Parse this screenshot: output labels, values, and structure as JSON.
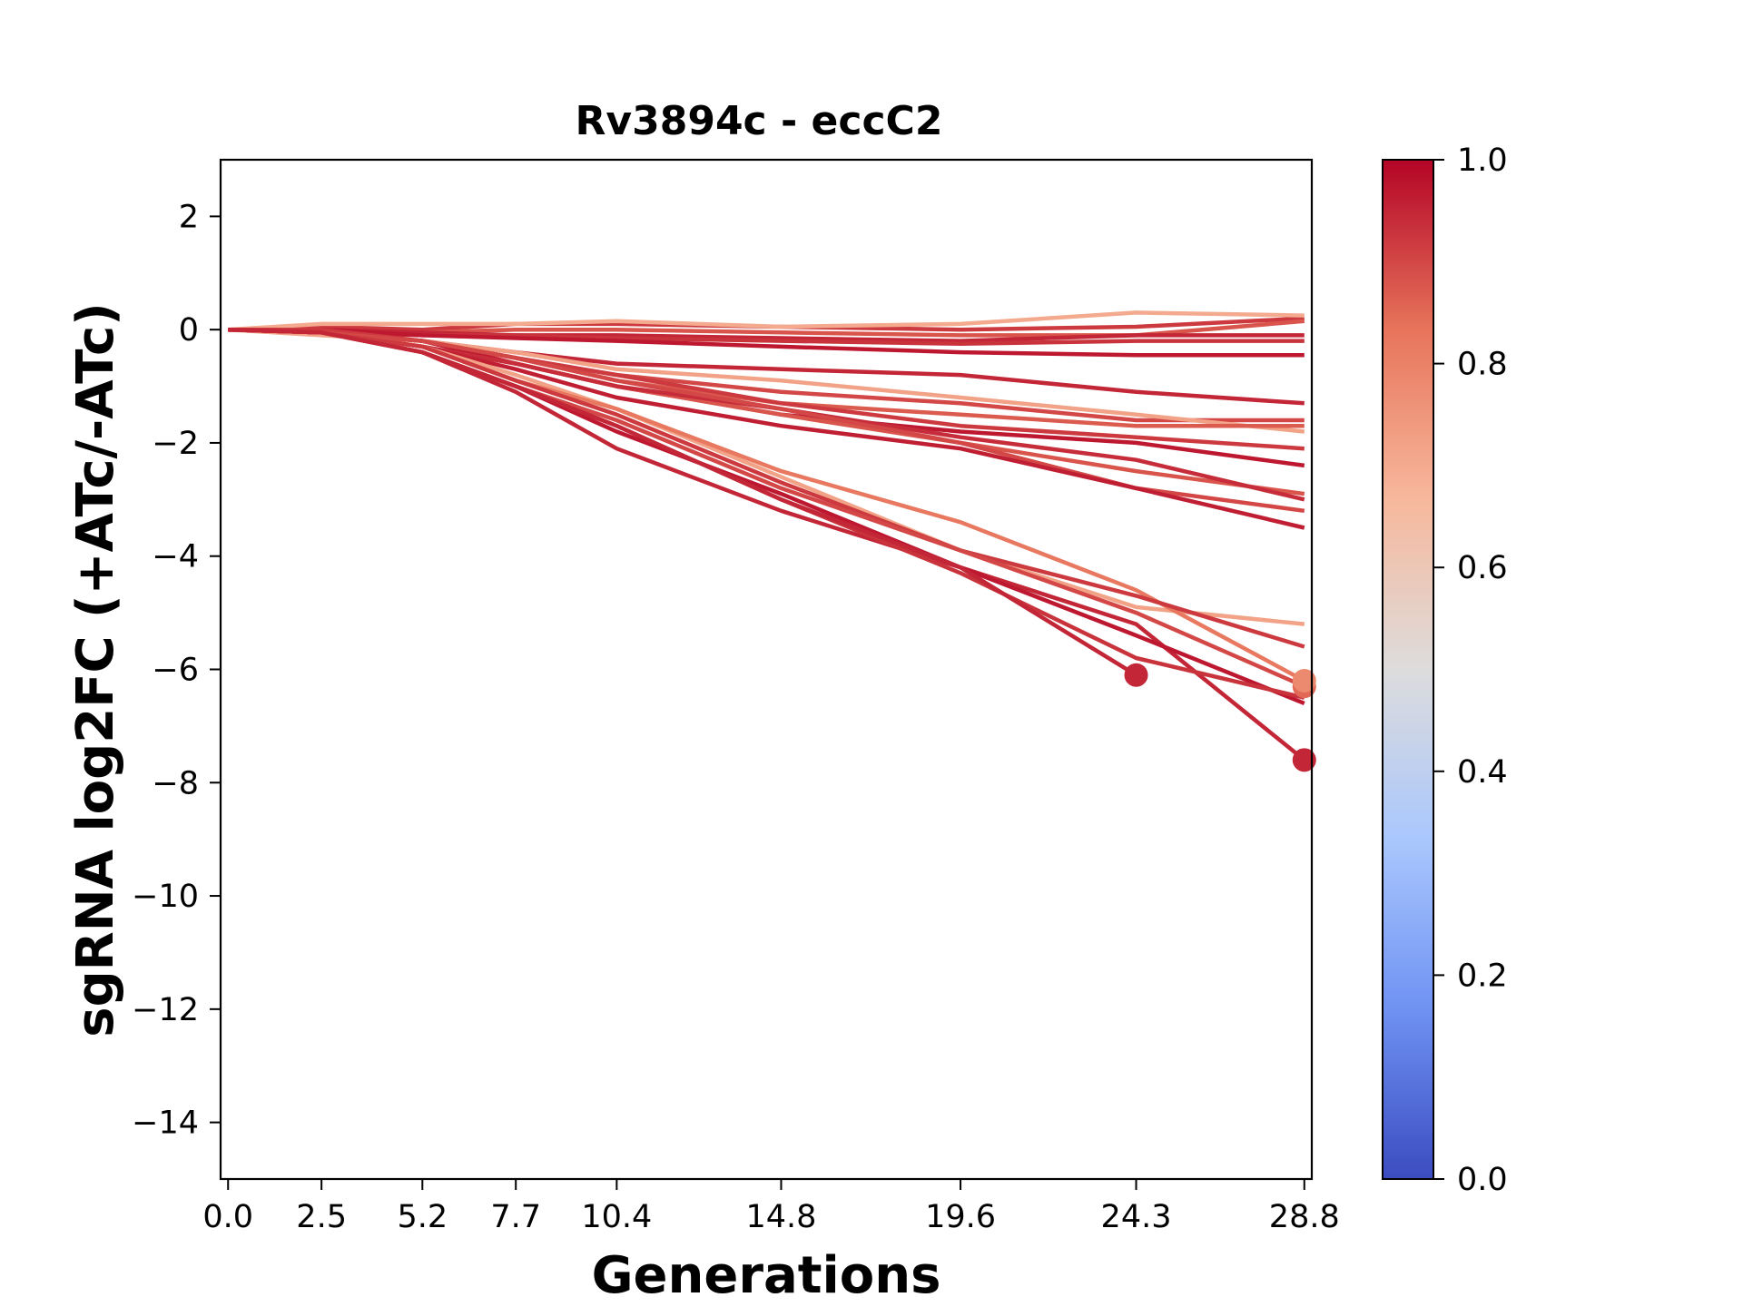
{
  "chart_data": {
    "type": "line",
    "title": "Rv3894c - eccC2",
    "xlabel": "Generations",
    "ylabel": "sgRNA log2FC (+ATc/-ATc)",
    "x_ticks": [
      "0.0",
      "2.5",
      "5.2",
      "7.7",
      "10.4",
      "14.8",
      "19.6",
      "24.3",
      "28.8"
    ],
    "y_ticks": [
      "2",
      "0",
      "−2",
      "−4",
      "−6",
      "−8",
      "−10",
      "−12",
      "−14"
    ],
    "xlim": [
      -0.2,
      29.0
    ],
    "ylim": [
      -15,
      3
    ],
    "colorbar": {
      "ticks": [
        "0.0",
        "0.2",
        "0.4",
        "0.6",
        "0.8",
        "1.0"
      ],
      "colormap": "coolwarm",
      "stops": [
        "#3b4cc0",
        "#6f92f3",
        "#aac7fd",
        "#dddcdc",
        "#f7b89c",
        "#e7745b",
        "#b40426"
      ]
    },
    "x": [
      0.0,
      2.5,
      5.2,
      7.7,
      10.4,
      14.8,
      19.6,
      24.3,
      28.8
    ],
    "series": [
      {
        "value": 0.92,
        "values": [
          0.0,
          0.05,
          0.0,
          0.1,
          0.1,
          0.05,
          0.0,
          0.05,
          0.2
        ]
      },
      {
        "value": 0.7,
        "values": [
          0.0,
          0.1,
          0.1,
          0.1,
          0.15,
          0.05,
          0.1,
          0.3,
          0.25
        ]
      },
      {
        "value": 0.88,
        "values": [
          0.0,
          0.0,
          -0.05,
          0.0,
          0.0,
          -0.05,
          -0.1,
          -0.1,
          0.15
        ]
      },
      {
        "value": 0.95,
        "values": [
          0.0,
          0.0,
          -0.05,
          -0.1,
          -0.1,
          -0.15,
          -0.2,
          -0.1,
          -0.1
        ]
      },
      {
        "value": 0.93,
        "values": [
          0.0,
          -0.05,
          -0.1,
          -0.1,
          -0.15,
          -0.2,
          -0.25,
          -0.2,
          -0.2
        ]
      },
      {
        "value": 0.97,
        "values": [
          0.0,
          0.0,
          -0.1,
          -0.15,
          -0.2,
          -0.3,
          -0.4,
          -0.45,
          -0.45
        ]
      },
      {
        "value": 0.95,
        "values": [
          0.0,
          -0.05,
          -0.2,
          -0.4,
          -0.6,
          -0.7,
          -0.8,
          -1.1,
          -1.3
        ]
      },
      {
        "value": 0.9,
        "values": [
          0.0,
          -0.05,
          -0.2,
          -0.5,
          -0.8,
          -1.1,
          -1.3,
          -1.6,
          -1.6
        ]
      },
      {
        "value": 0.72,
        "values": [
          0.0,
          -0.1,
          -0.2,
          -0.4,
          -0.7,
          -0.9,
          -1.2,
          -1.5,
          -1.8
        ]
      },
      {
        "value": 0.87,
        "values": [
          0.0,
          -0.05,
          -0.2,
          -0.5,
          -0.9,
          -1.3,
          -1.5,
          -1.7,
          -1.7
        ]
      },
      {
        "value": 0.92,
        "values": [
          0.0,
          0.0,
          -0.2,
          -0.5,
          -0.8,
          -1.3,
          -1.7,
          -1.9,
          -2.1
        ]
      },
      {
        "value": 0.97,
        "values": [
          0.0,
          -0.05,
          -0.2,
          -0.6,
          -1.0,
          -1.5,
          -1.8,
          -2.0,
          -2.4
        ]
      },
      {
        "value": 0.88,
        "values": [
          0.0,
          -0.05,
          -0.3,
          -0.6,
          -1.0,
          -1.5,
          -2.0,
          -2.5,
          -2.9
        ]
      },
      {
        "value": 0.94,
        "values": [
          0.0,
          -0.05,
          -0.3,
          -0.6,
          -1.0,
          -1.4,
          -1.9,
          -2.3,
          -3.0
        ]
      },
      {
        "value": 0.9,
        "values": [
          0.0,
          -0.05,
          -0.2,
          -0.5,
          -0.9,
          -1.4,
          -2.0,
          -2.8,
          -3.2
        ]
      },
      {
        "value": 0.96,
        "values": [
          0.0,
          -0.05,
          -0.3,
          -0.7,
          -1.2,
          -1.7,
          -2.1,
          -2.8,
          -3.5
        ]
      },
      {
        "value": 0.72,
        "values": [
          0.0,
          -0.05,
          -0.3,
          -0.8,
          -1.4,
          -2.6,
          -3.9,
          -4.9,
          -5.2
        ]
      },
      {
        "value": 0.82,
        "values": [
          0.0,
          -0.05,
          -0.3,
          -0.9,
          -1.4,
          -2.5,
          -3.4,
          -4.6,
          -6.2
        ]
      },
      {
        "value": 0.92,
        "values": [
          0.0,
          -0.05,
          -0.3,
          -0.9,
          -1.5,
          -2.7,
          -3.9,
          -4.7,
          -5.6
        ]
      },
      {
        "value": 0.95,
        "values": [
          0.0,
          -0.05,
          -0.4,
          -1.1,
          -2.1,
          -3.2,
          -4.2,
          -5.2,
          -7.6
        ]
      },
      {
        "value": 0.97,
        "values": [
          0.0,
          -0.05,
          -0.4,
          -1.0,
          -1.8,
          -2.9,
          -4.2,
          -5.4,
          -6.6
        ]
      },
      {
        "value": 0.9,
        "values": [
          0.0,
          -0.05,
          -0.4,
          -1.0,
          -1.6,
          -2.8,
          -3.9,
          -5.0,
          -6.3
        ]
      },
      {
        "value": 0.93,
        "values": [
          0.0,
          -0.05,
          -0.4,
          -1.0,
          -1.7,
          -3.0,
          -4.3,
          -5.8,
          -6.5
        ]
      },
      {
        "value": 0.95,
        "values": [
          0.0,
          -0.05,
          -0.4,
          -1.0,
          -1.7,
          -3.0,
          -4.2,
          -6.1,
          null
        ]
      }
    ],
    "markers": [
      {
        "x": 24.3,
        "y": -6.1,
        "value": 0.95
      },
      {
        "x": 28.8,
        "y": -7.6,
        "value": 0.95
      },
      {
        "x": 28.8,
        "y": -6.3,
        "value": 0.85
      },
      {
        "x": 28.8,
        "y": -6.2,
        "value": 0.78
      }
    ]
  }
}
